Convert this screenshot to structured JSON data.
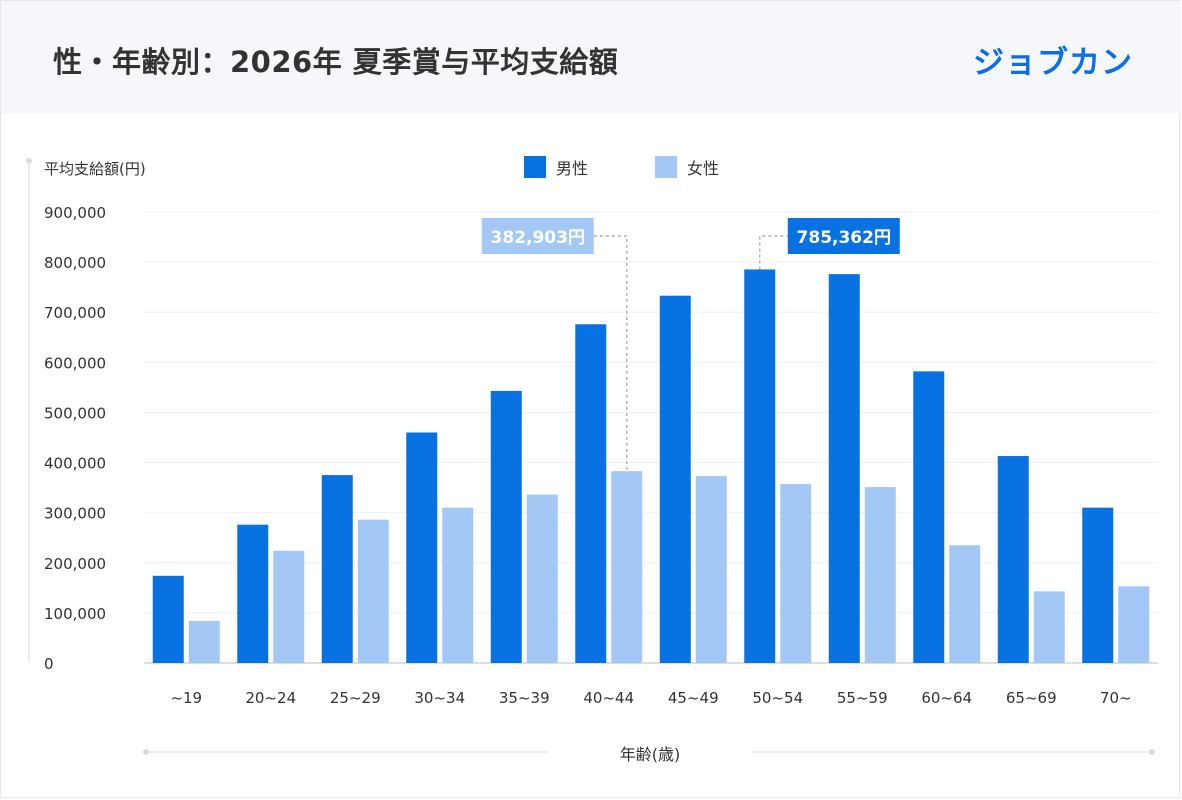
{
  "header": {
    "title": "性・年齢別：2026年 夏季賞与平均支給額",
    "logo": "ジョブカン"
  },
  "colors": {
    "male": "#0872e3",
    "female": "#a3c8f5",
    "callout_female_bg": "#a3c8f5",
    "callout_male_bg": "#0872e3",
    "header_bg": "#f5f7fa",
    "logo": "#0d6fe8"
  },
  "chart_data": {
    "type": "bar",
    "title": "",
    "ylabel": "平均支給額(円)",
    "xlabel": "年齢(歳)",
    "ylim": [
      0,
      900000
    ],
    "yticks": [
      0,
      100000,
      200000,
      300000,
      400000,
      500000,
      600000,
      700000,
      800000,
      900000
    ],
    "ytick_labels": [
      "0",
      "100,000",
      "200,000",
      "300,000",
      "400,000",
      "500,000",
      "600,000",
      "700,000",
      "800,000",
      "900,000"
    ],
    "grid": true,
    "legend_position": "top-center",
    "categories": [
      "~19",
      "20~24",
      "25~29",
      "30~34",
      "35~39",
      "40~44",
      "45~49",
      "50~54",
      "55~59",
      "60~64",
      "65~69",
      "70~"
    ],
    "series": [
      {
        "name": "男性",
        "color": "#0872e3",
        "values": [
          174000,
          276000,
          375000,
          460000,
          543000,
          676000,
          733000,
          785362,
          776000,
          582000,
          413000,
          310000
        ]
      },
      {
        "name": "女性",
        "color": "#a3c8f5",
        "values": [
          84000,
          224000,
          286000,
          310000,
          336000,
          382903,
          373000,
          357000,
          351000,
          235000,
          143000,
          153000
        ]
      }
    ],
    "annotations": [
      {
        "series": "女性",
        "category": "40~44",
        "label": "382,903円"
      },
      {
        "series": "男性",
        "category": "50~54",
        "label": "785,362円"
      }
    ]
  }
}
